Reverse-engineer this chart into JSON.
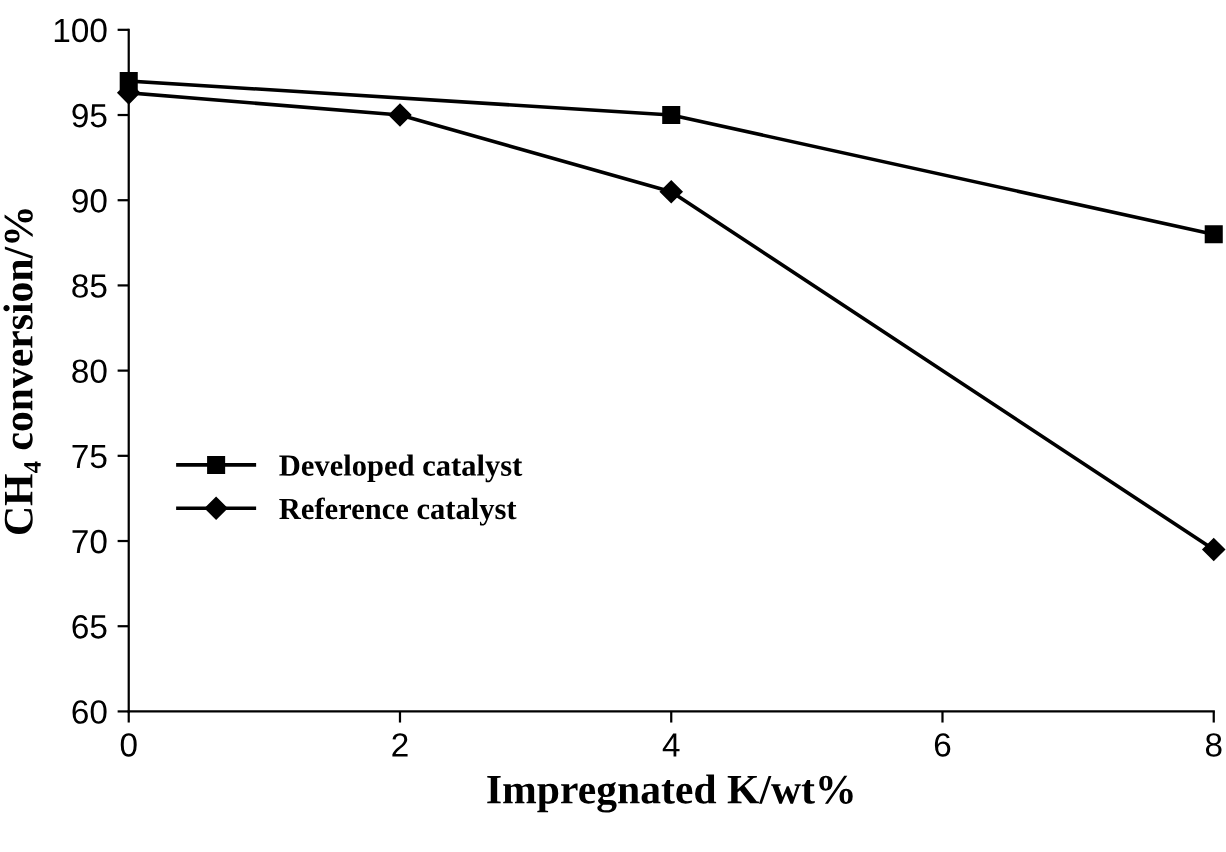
{
  "chart_data": {
    "type": "line",
    "xlabel": "Impregnated K/wt%",
    "ylabel": "CH₄ conversion/%",
    "series": [
      {
        "name": "Developed catalyst",
        "color": "#000000",
        "marker": "square",
        "x": [
          0,
          4,
          8
        ],
        "values": [
          97,
          95,
          88
        ]
      },
      {
        "name": "Reference catalyst",
        "color": "#000000",
        "marker": "diamond",
        "x": [
          0,
          2,
          4,
          8
        ],
        "values": [
          96.3,
          95,
          90.5,
          69.5
        ]
      }
    ],
    "xlim": [
      0,
      8
    ],
    "xticks": [
      0,
      2,
      4,
      6,
      8
    ],
    "ylim": [
      60,
      100
    ],
    "yticks": [
      60,
      65,
      70,
      75,
      80,
      85,
      90,
      95,
      100
    ],
    "legend": "left",
    "grid": false,
    "line_style": "solid"
  }
}
